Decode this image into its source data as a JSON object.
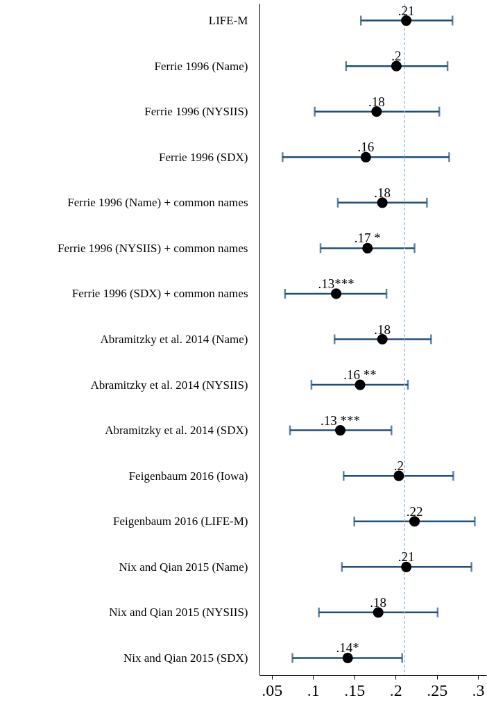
{
  "chart_data": {
    "type": "scatter",
    "orientation": "horizontal",
    "marker": "circle",
    "grid": false,
    "categories": [
      "LIFE-M",
      "Ferrie 1996 (Name)",
      "Ferrie 1996 (NYSIIS)",
      "Ferrie 1996 (SDX)",
      "Ferrie 1996 (Name) + common names",
      "Ferrie 1996 (NYSIIS) + common names",
      "Ferrie 1996 (SDX) + common names",
      "Abramitzky et al. 2014 (Name)",
      "Abramitzky et al. 2014 (NYSIIS)",
      "Abramitzky et al. 2014 (SDX)",
      "Feigenbaum 2016 (Iowa)",
      "Feigenbaum 2016 (LIFE-M)",
      "Nix and Qian 2015 (Name)",
      "Nix and Qian 2015 (NYSIIS)",
      "Nix and Qian 2015 (SDX)"
    ],
    "series": [
      {
        "color": "#000000",
        "values": [
          0.213,
          0.201,
          0.177,
          0.164,
          0.184,
          0.166,
          0.128,
          0.184,
          0.157,
          0.133,
          0.204,
          0.223,
          0.213,
          0.179,
          0.142
        ],
        "errors": [
          [
            0.158,
            0.269
          ],
          [
            0.14,
            0.263
          ],
          [
            0.102,
            0.253
          ],
          [
            0.063,
            0.265
          ],
          [
            0.13,
            0.238
          ],
          [
            0.109,
            0.223
          ],
          [
            0.066,
            0.189
          ],
          [
            0.126,
            0.243
          ],
          [
            0.098,
            0.215
          ],
          [
            0.072,
            0.195
          ],
          [
            0.137,
            0.27
          ],
          [
            0.15,
            0.296
          ],
          [
            0.135,
            0.292
          ],
          [
            0.107,
            0.251
          ],
          [
            0.075,
            0.208
          ]
        ],
        "value_labels": [
          ".21",
          ".2",
          ".18",
          ".16",
          ".18",
          ".17 *",
          ".13***",
          ".18",
          ".16 **",
          ".13 ***",
          ".2",
          ".22",
          ".21",
          ".18",
          ".14*"
        ]
      }
    ],
    "xlim": [
      0.035,
      0.31
    ],
    "xticks": [
      {
        "value": 0.05,
        "label": ".05"
      },
      {
        "value": 0.1,
        "label": ".1"
      },
      {
        "value": 0.15,
        "label": ".15"
      },
      {
        "value": 0.2,
        "label": ".2"
      },
      {
        "value": 0.25,
        "label": ".25"
      },
      {
        "value": 0.3,
        "label": ".3"
      }
    ],
    "ref_lines": [
      {
        "axis": "x",
        "value": 0.211,
        "color": "#8fbbe3",
        "line_style": "dashed"
      }
    ]
  }
}
